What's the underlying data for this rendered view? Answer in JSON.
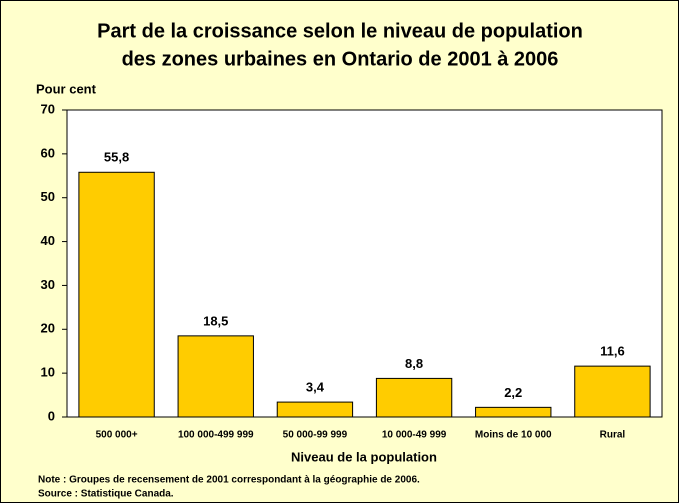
{
  "chart_data": {
    "type": "bar",
    "title": [
      "Part de la croissance selon le niveau de population",
      "des zones urbaines en Ontario de 2001 à 2006"
    ],
    "y_label": "Pour cent",
    "x_label": "Niveau de la population",
    "categories": [
      "500 000+",
      "100 000-499 999",
      "50 000-99 999",
      "10 000-49 999",
      "Moins de 10 000",
      "Rural"
    ],
    "values": [
      55.8,
      18.5,
      3.4,
      8.8,
      2.2,
      11.6
    ],
    "value_labels": [
      "55,8",
      "18,5",
      "3,4",
      "8,8",
      "2,2",
      "11,6"
    ],
    "color": "#ffcc00",
    "ylim": [
      0,
      70
    ],
    "yticks": [
      0,
      10,
      20,
      30,
      40,
      50,
      60,
      70
    ],
    "grid": false,
    "notes": [
      "Note : Groupes de recensement de 2001 correspondant à la géographie de 2006.",
      "Source : Statistique Canada."
    ]
  }
}
